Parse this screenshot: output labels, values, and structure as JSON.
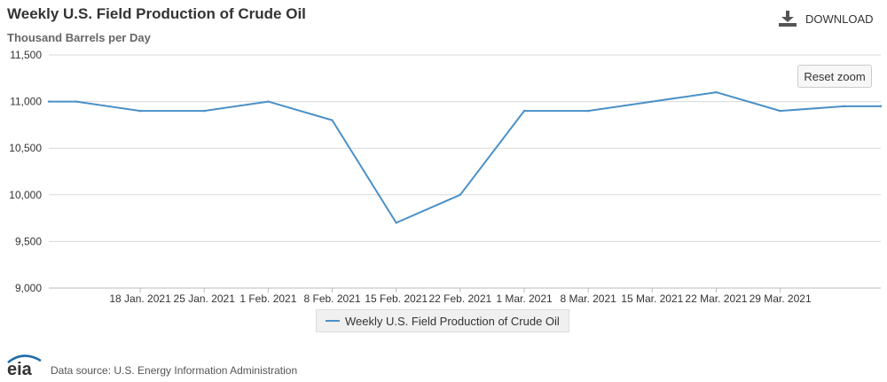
{
  "header": {
    "title": "Weekly U.S. Field Production of Crude Oil",
    "subtitle": "Thousand Barrels per Day",
    "download_label": "DOWNLOAD",
    "download_icon": "download-icon"
  },
  "controls": {
    "reset_zoom_label": "Reset zoom"
  },
  "legend": {
    "label": "Weekly U.S. Field Production of Crude Oil"
  },
  "footer": {
    "logo_text": "eia",
    "source": "Data source: U.S. Energy Information Administration"
  },
  "colors": {
    "series": "#4a90c8",
    "grid": "#d8d8d8",
    "axis_text": "#333333"
  },
  "chart_data": {
    "type": "line",
    "title": "Weekly U.S. Field Production of Crude Oil",
    "ylabel": "Thousand Barrels per Day",
    "ylim": [
      9000,
      11500
    ],
    "yticks": [
      9000,
      9500,
      10000,
      10500,
      11000,
      11500
    ],
    "ytick_labels": [
      "9,000",
      "9,500",
      "10,000",
      "10,500",
      "11,000",
      "11,500"
    ],
    "xlim": [
      "2021-01-08",
      "2021-04-09"
    ],
    "xticks": [
      "2021-01-18",
      "2021-01-25",
      "2021-02-01",
      "2021-02-08",
      "2021-02-15",
      "2021-02-22",
      "2021-03-01",
      "2021-03-08",
      "2021-03-15",
      "2021-03-22",
      "2021-03-29"
    ],
    "xtick_labels": [
      "18 Jan. 2021",
      "25 Jan. 2021",
      "1 Feb. 2021",
      "8 Feb. 2021",
      "15 Feb. 2021",
      "22 Feb. 2021",
      "1 Mar. 2021",
      "8 Mar. 2021",
      "15 Mar. 2021",
      "22 Mar. 2021",
      "29 Mar. 2021"
    ],
    "grid": true,
    "legend_position": "bottom-center",
    "series": [
      {
        "name": "Weekly U.S. Field Production of Crude Oil",
        "x": [
          "2021-01-08",
          "2021-01-11",
          "2021-01-18",
          "2021-01-25",
          "2021-02-01",
          "2021-02-08",
          "2021-02-15",
          "2021-02-22",
          "2021-03-01",
          "2021-03-08",
          "2021-03-15",
          "2021-03-22",
          "2021-03-29",
          "2021-04-05",
          "2021-04-09"
        ],
        "values": [
          11000,
          11000,
          10900,
          10900,
          11000,
          10800,
          9700,
          10000,
          10900,
          10900,
          11000,
          11100,
          10900,
          10950,
          10950
        ]
      }
    ]
  }
}
